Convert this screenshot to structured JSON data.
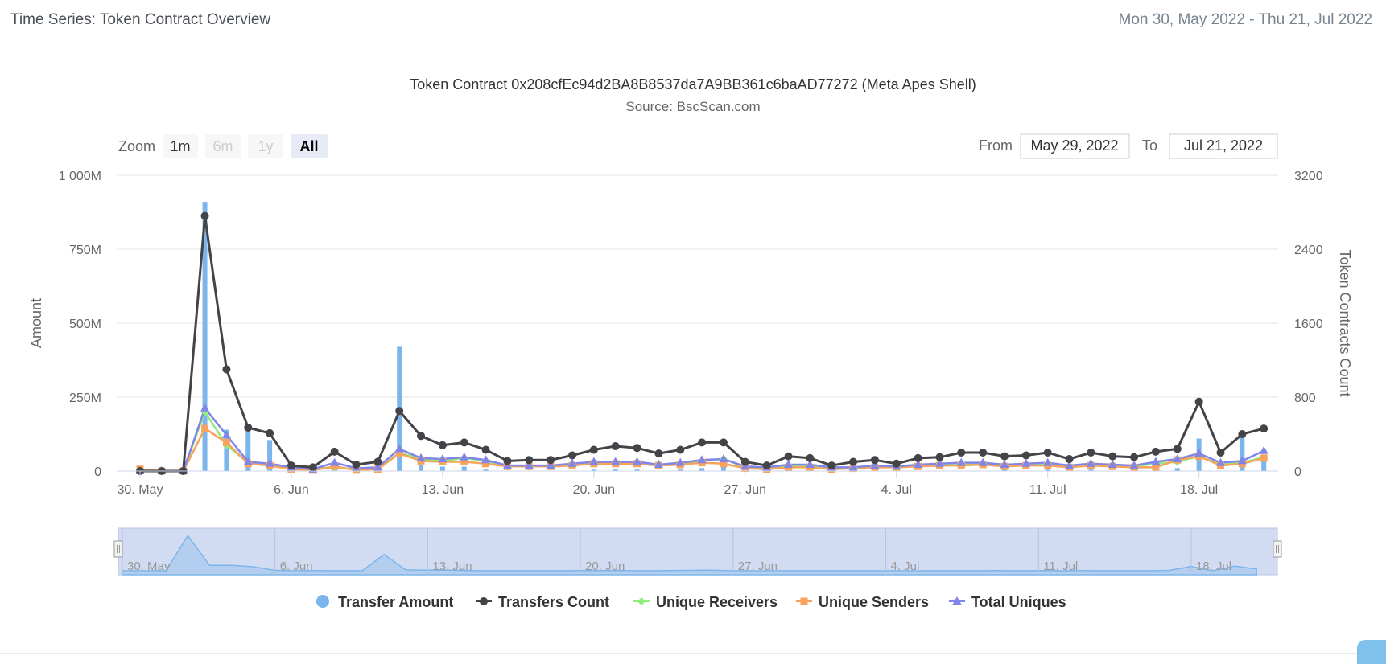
{
  "header": {
    "title": "Time Series: Token Contract Overview",
    "date_range": "Mon 30, May 2022 - Thu 21, Jul 2022"
  },
  "range_selector": {
    "zoom_label": "Zoom",
    "buttons": [
      {
        "label": "1m",
        "state": "enabled"
      },
      {
        "label": "6m",
        "state": "disabled"
      },
      {
        "label": "1y",
        "state": "disabled"
      },
      {
        "label": "All",
        "state": "selected"
      }
    ],
    "from_label": "From",
    "from_value": "May 29, 2022",
    "to_label": "To",
    "to_value": "Jul 21, 2022"
  },
  "navigator": {
    "labels": [
      "30. May",
      "6. Jun",
      "13. Jun",
      "20. Jun",
      "27. Jun",
      "4. Jul",
      "11. Jul",
      "18. Jul"
    ]
  },
  "colors": {
    "transfer_amount": "#7cb5ec",
    "transfers_count": "#434348",
    "unique_receivers": "#90ed7d",
    "unique_senders": "#f7a35c",
    "total_uniques": "#8085e9",
    "navigator_fill": "#c9d6f0",
    "gridline": "#e6e6e6"
  },
  "chart_data": {
    "type": "line",
    "title": "Token Contract 0x208cfEc94d2BA8B8537da7A9BB361c6baAD77272 (Meta Apes Shell)",
    "subtitle": "Source: BscScan.com",
    "x_start": "2022-05-30",
    "x_end": "2022-07-21",
    "x_tick_labels": [
      "30. May",
      "6. Jun",
      "13. Jun",
      "20. Jun",
      "27. Jun",
      "4. Jul",
      "11. Jul",
      "18. Jul"
    ],
    "y_left": {
      "label": "Amount",
      "ylim": [
        0,
        1000
      ],
      "tick_labels": [
        "0",
        "250M",
        "500M",
        "750M",
        "1 000M"
      ]
    },
    "y_right": {
      "label": "Token Contracts Count",
      "ylim": [
        0,
        3200
      ],
      "tick_labels": [
        "0",
        "800",
        "1600",
        "2400",
        "3200"
      ]
    },
    "grid": true,
    "legend_position": "bottom",
    "series": [
      {
        "name": "Transfer Amount",
        "kind": "column",
        "axis": "left",
        "unit": "M",
        "values": [
          0,
          0,
          0,
          910,
          140,
          140,
          105,
          10,
          0,
          5,
          0,
          0,
          420,
          20,
          15,
          15,
          5,
          0,
          0,
          0,
          0,
          5,
          5,
          5,
          0,
          5,
          10,
          15,
          0,
          0,
          0,
          0,
          0,
          0,
          0,
          0,
          0,
          0,
          0,
          0,
          5,
          0,
          5,
          0,
          5,
          0,
          0,
          0,
          10,
          110,
          0,
          120,
          45
        ]
      },
      {
        "name": "Transfers Count",
        "axis": "right",
        "values": [
          0,
          0,
          0,
          2760,
          1100,
          470,
          410,
          60,
          40,
          210,
          70,
          100,
          650,
          380,
          280,
          310,
          230,
          110,
          120,
          120,
          170,
          230,
          270,
          250,
          190,
          230,
          310,
          310,
          100,
          60,
          160,
          140,
          60,
          100,
          120,
          80,
          140,
          150,
          200,
          200,
          160,
          170,
          200,
          130,
          200,
          160,
          150,
          210,
          240,
          750,
          200,
          400,
          460
        ]
      },
      {
        "name": "Unique Receivers",
        "axis": "right",
        "values": [
          0,
          0,
          0,
          640,
          280,
          90,
          70,
          40,
          20,
          40,
          20,
          20,
          200,
          130,
          110,
          140,
          110,
          50,
          50,
          50,
          70,
          90,
          90,
          90,
          60,
          80,
          110,
          130,
          40,
          30,
          50,
          50,
          20,
          30,
          50,
          40,
          60,
          70,
          80,
          80,
          60,
          70,
          80,
          50,
          70,
          60,
          50,
          80,
          100,
          160,
          70,
          90,
          150
        ]
      },
      {
        "name": "Unique Senders",
        "axis": "right",
        "values": [
          20,
          0,
          0,
          460,
          310,
          80,
          60,
          20,
          10,
          50,
          10,
          20,
          190,
          110,
          100,
          100,
          80,
          50,
          50,
          50,
          60,
          80,
          80,
          80,
          60,
          70,
          90,
          80,
          30,
          20,
          40,
          40,
          20,
          30,
          40,
          40,
          50,
          60,
          60,
          70,
          50,
          60,
          60,
          40,
          60,
          50,
          40,
          40,
          120,
          160,
          60,
          80,
          140
        ]
      },
      {
        "name": "Total Uniques",
        "axis": "right",
        "values": [
          0,
          0,
          0,
          680,
          390,
          100,
          80,
          40,
          20,
          90,
          30,
          40,
          240,
          140,
          130,
          150,
          120,
          60,
          60,
          60,
          80,
          100,
          100,
          100,
          70,
          90,
          120,
          130,
          50,
          40,
          70,
          70,
          40,
          40,
          60,
          50,
          70,
          80,
          90,
          90,
          70,
          80,
          90,
          60,
          80,
          70,
          60,
          100,
          130,
          190,
          90,
          110,
          220
        ]
      }
    ]
  }
}
